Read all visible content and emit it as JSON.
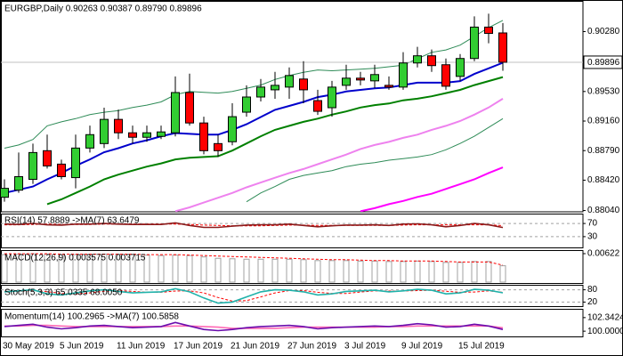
{
  "chart_data": [
    {
      "type": "candlestick",
      "title": "EURGBP,Daily  0.90263 0.90387 0.89790 0.89896",
      "categories": [
        "30 May 2019",
        null,
        null,
        null,
        "5 Jun 2019",
        null,
        null,
        null,
        "11 Jun 2019",
        null,
        null,
        null,
        "17 Jun 2019",
        null,
        null,
        null,
        "21 Jun 2019",
        null,
        null,
        null,
        "27 Jun 2019",
        null,
        null,
        null,
        "3 Jul 2019",
        null,
        null,
        null,
        "9 Jul 2019",
        null,
        null,
        null,
        "15 Jul 2019",
        null,
        null,
        null
      ],
      "open": [
        0.88206,
        0.88295,
        0.8843,
        0.88789,
        0.88621,
        0.88452,
        0.88822,
        0.88878,
        0.89181,
        0.89013,
        0.88957,
        0.88968,
        0.89013,
        0.89517,
        0.89136,
        0.88878,
        0.88901,
        0.89271,
        0.89461,
        0.89551,
        0.89585,
        0.89686,
        0.89416,
        0.89327,
        0.89607,
        0.89697,
        0.89663,
        0.89607,
        0.89585,
        0.89887,
        0.89977,
        0.89865,
        0.89719,
        0.89943,
        0.90336,
        0.90263
      ],
      "high": [
        0.8843,
        0.88766,
        0.88878,
        0.8899,
        0.88677,
        0.8899,
        0.89103,
        0.89327,
        0.89304,
        0.89103,
        0.89103,
        0.89103,
        0.89719,
        0.89753,
        0.89215,
        0.8899,
        0.89383,
        0.89607,
        0.89686,
        0.89775,
        0.89831,
        0.8991,
        0.89551,
        0.89663,
        0.89865,
        0.89775,
        0.89865,
        0.89719,
        0.90022,
        0.90089,
        0.90055,
        0.89943,
        0.89999,
        0.9047,
        0.90504,
        0.90387
      ],
      "low": [
        0.8815,
        0.88262,
        0.88374,
        0.88565,
        0.8843,
        0.88318,
        0.88766,
        0.88822,
        0.88934,
        0.88878,
        0.88901,
        0.88934,
        0.88968,
        0.89103,
        0.88744,
        0.8871,
        0.88856,
        0.89215,
        0.89405,
        0.89439,
        0.89439,
        0.89383,
        0.89237,
        0.89215,
        0.89551,
        0.89607,
        0.89573,
        0.89551,
        0.89551,
        0.89831,
        0.89775,
        0.89551,
        0.89663,
        0.8991,
        0.90134,
        0.8979
      ],
      "close": [
        0.88318,
        0.88464,
        0.88766,
        0.88598,
        0.88464,
        0.88822,
        0.8899,
        0.89181,
        0.89013,
        0.88957,
        0.89013,
        0.89024,
        0.89517,
        0.89136,
        0.88789,
        0.88789,
        0.89215,
        0.89461,
        0.89585,
        0.89607,
        0.8973,
        0.89551,
        0.89282,
        0.89585,
        0.89697,
        0.89674,
        0.89742,
        0.89585,
        0.89887,
        0.89977,
        0.89854,
        0.89596,
        0.89943,
        0.90336,
        0.90257,
        0.89896
      ],
      "up_color": "#32cd32",
      "down_color": "#ff0000",
      "lines": [
        {
          "color": "#2e8b57",
          "width": 1,
          "values": [
            0.8882,
            0.8886,
            0.8893,
            0.891,
            0.8915,
            0.8919,
            0.8924,
            0.8927,
            0.8929,
            0.8933,
            0.8936,
            0.894,
            0.8949,
            0.8953,
            0.8952,
            0.8951,
            0.8953,
            0.8957,
            0.8961,
            0.8968,
            0.8973,
            0.8977,
            0.898,
            0.8979,
            0.898,
            0.8981,
            0.8982,
            0.8984,
            0.8986,
            0.8994,
            0.9002,
            0.9005,
            0.9011,
            0.9022,
            0.9033,
            0.9042
          ]
        },
        {
          "color": "#2e8b57",
          "width": 1,
          "values": [
            null,
            null,
            null,
            null,
            null,
            null,
            null,
            null,
            null,
            null,
            null,
            null,
            null,
            null,
            null,
            null,
            null,
            0.8815,
            0.8826,
            0.8834,
            0.8843,
            0.8848,
            0.8851,
            0.8854,
            0.8859,
            0.8862,
            0.8864,
            0.8867,
            0.8869,
            0.8871,
            0.8874,
            0.888,
            0.8888,
            0.8897,
            0.8908,
            0.8919
          ]
        },
        {
          "color": "#ff00ff",
          "width": 2,
          "values": [
            null,
            null,
            null,
            null,
            null,
            null,
            null,
            null,
            null,
            null,
            null,
            null,
            null,
            null,
            null,
            null,
            null,
            null,
            null,
            null,
            null,
            null,
            null,
            null,
            null,
            0.8803,
            0.8807,
            0.8812,
            0.8816,
            0.8821,
            0.8825,
            0.8831,
            0.8837,
            0.8843,
            0.8851,
            0.8858
          ]
        },
        {
          "color": "#ee82ee",
          "width": 2,
          "values": [
            null,
            null,
            null,
            null,
            null,
            null,
            null,
            null,
            null,
            null,
            null,
            null,
            0.8803,
            0.8808,
            0.8814,
            0.882,
            0.8826,
            0.8833,
            0.8839,
            0.8845,
            0.8851,
            0.8856,
            0.8862,
            0.8868,
            0.8874,
            0.8881,
            0.8886,
            0.889,
            0.8895,
            0.8899,
            0.8905,
            0.891,
            0.8916,
            0.8924,
            0.8933,
            0.8944
          ]
        },
        {
          "color": "#008000",
          "width": 2,
          "values": [
            null,
            null,
            null,
            0.8812,
            0.8818,
            0.8826,
            0.8834,
            0.8843,
            0.8849,
            0.8854,
            0.8859,
            0.8863,
            0.8868,
            0.887,
            0.8871,
            0.8872,
            0.8879,
            0.8888,
            0.8897,
            0.8905,
            0.891,
            0.8915,
            0.8919,
            0.8924,
            0.8928,
            0.8933,
            0.8936,
            0.8938,
            0.8942,
            0.8944,
            0.8947,
            0.8951,
            0.8955,
            0.8961,
            0.8966,
            0.8971
          ]
        },
        {
          "color": "#0000cc",
          "width": 2,
          "values": [
            0.8826,
            0.883,
            0.8834,
            0.8843,
            0.8851,
            0.886,
            0.8868,
            0.8877,
            0.8882,
            0.8888,
            0.8892,
            0.8897,
            0.8901,
            0.89,
            0.8899,
            0.8899,
            0.8905,
            0.8912,
            0.8921,
            0.893,
            0.8935,
            0.894,
            0.8946,
            0.8949,
            0.8953,
            0.8955,
            0.8957,
            0.8958,
            0.8961,
            0.8964,
            0.8964,
            0.8964,
            0.8966,
            0.8975,
            0.8982,
            0.8989
          ]
        }
      ],
      "last_price": 0.89896,
      "ylim": [
        0.88035,
        0.90653
      ],
      "yticks": [
        {
          "value": 0.9028,
          "label": "0.90280"
        },
        {
          "value": 0.8953,
          "label": "0.89530"
        },
        {
          "value": 0.8916,
          "label": "0.89160"
        },
        {
          "value": 0.8879,
          "label": "0.88790"
        },
        {
          "value": 0.8842,
          "label": "0.88420"
        },
        {
          "value": 0.8804,
          "label": "0.88040"
        }
      ],
      "grid": false
    },
    {
      "type": "line",
      "title": "RSI(14) 57.8889  ->MA(7) 63.6479",
      "series": [
        {
          "color": "#ff0000",
          "style": "dashed",
          "values": [
            66,
            66,
            67,
            68,
            67,
            67,
            67,
            68,
            68,
            68,
            68,
            68,
            68,
            67,
            65,
            64,
            63,
            63,
            63,
            64,
            65,
            65,
            64,
            64,
            64,
            64,
            64,
            64,
            65,
            66,
            66,
            66,
            66,
            66,
            66,
            63.6479
          ]
        },
        {
          "color": "#8b1a1a",
          "style": "solid",
          "values": [
            68,
            67,
            70,
            66,
            65,
            68,
            68,
            70,
            68,
            67,
            67,
            67,
            72,
            64,
            58,
            58,
            62,
            65,
            66,
            66,
            68,
            64,
            60,
            63,
            65,
            65,
            66,
            64,
            68,
            69,
            66,
            60,
            64,
            70,
            66,
            57.8889
          ]
        }
      ],
      "ylim": [
        0,
        100
      ],
      "yticks": [
        70,
        30
      ],
      "grid": true
    },
    {
      "type": "bar",
      "title": "MACD(12,26,9) 0.003575 0.003715",
      "series": [
        {
          "color": "#a0a0a0",
          "style": "bar",
          "values": [
            0.006,
            0.0061,
            0.0062,
            0.0061,
            0.006,
            0.006,
            0.006,
            0.0061,
            0.0061,
            0.006,
            0.0059,
            0.0058,
            0.0059,
            0.0058,
            0.0055,
            0.0052,
            0.0051,
            0.005,
            0.005,
            0.005,
            0.005,
            0.0049,
            0.0047,
            0.0047,
            0.0047,
            0.0046,
            0.0046,
            0.0045,
            0.0045,
            0.0046,
            0.0045,
            0.0043,
            0.0043,
            0.0045,
            0.0045,
            0.003575
          ]
        },
        {
          "color": "#ff0000",
          "style": "dashed",
          "values": [
            0.0062,
            0.0062,
            0.0062,
            0.0062,
            0.0061,
            0.0061,
            0.0061,
            0.0061,
            0.0061,
            0.0061,
            0.006,
            0.006,
            0.006,
            0.0059,
            0.0058,
            0.0057,
            0.0056,
            0.0055,
            0.0054,
            0.0053,
            0.0052,
            0.0051,
            0.005,
            0.0049,
            0.0049,
            0.0048,
            0.0047,
            0.0047,
            0.0046,
            0.0046,
            0.0046,
            0.0045,
            0.0044,
            0.0044,
            0.0044,
            0.003715
          ]
        }
      ],
      "ylim": [
        0,
        0.0068
      ],
      "yticks": [
        0.00622
      ],
      "grid": false
    },
    {
      "type": "line",
      "title": "Stoch(5,3,3) 65.0335 68.0050",
      "series": [
        {
          "color": "#ff0000",
          "style": "dashed",
          "values": [
            72,
            73,
            76,
            71,
            62,
            60,
            65,
            73,
            76,
            72,
            68,
            68,
            74,
            75,
            65,
            42,
            25,
            27,
            45,
            65,
            76,
            76,
            68,
            62,
            62,
            69,
            75,
            74,
            74,
            76,
            78,
            73,
            68,
            69,
            75,
            68.005
          ]
        },
        {
          "color": "#20b2aa",
          "style": "solid",
          "values": [
            70,
            75,
            80,
            60,
            55,
            65,
            75,
            80,
            72,
            65,
            68,
            70,
            85,
            70,
            40,
            15,
            20,
            45,
            70,
            80,
            78,
            70,
            55,
            60,
            72,
            75,
            78,
            70,
            75,
            82,
            78,
            60,
            65,
            82,
            78,
            65.0335
          ]
        }
      ],
      "ylim": [
        0,
        100
      ],
      "yticks": [
        80,
        20
      ],
      "grid": true
    },
    {
      "type": "line",
      "title": "Momentum(14) 100.2965  ->MA(7) 100.5858",
      "series": [
        {
          "color": "#ff69b4",
          "style": "solid",
          "values": [
            100.9,
            100.9,
            101.0,
            101.0,
            100.9,
            100.8,
            100.8,
            100.8,
            100.8,
            100.8,
            100.8,
            100.8,
            100.9,
            100.9,
            100.8,
            100.7,
            100.5,
            100.5,
            100.5,
            100.5,
            100.6,
            100.7,
            100.7,
            100.7,
            100.7,
            100.7,
            100.7,
            100.8,
            100.8,
            100.9,
            100.9,
            100.9,
            100.9,
            100.9,
            100.9,
            100.5858
          ]
        },
        {
          "color": "#6a0dad",
          "style": "solid",
          "values": [
            100.8,
            101.0,
            101.2,
            100.7,
            100.4,
            100.6,
            100.9,
            101.0,
            100.8,
            100.6,
            100.7,
            100.8,
            101.5,
            100.9,
            100.3,
            100.1,
            100.3,
            100.6,
            100.8,
            100.9,
            101.0,
            100.8,
            100.4,
            100.6,
            100.7,
            100.8,
            100.9,
            100.8,
            101.0,
            101.3,
            101.1,
            100.7,
            100.8,
            101.2,
            100.9,
            100.2965
          ]
        }
      ],
      "ylim": [
        99.1,
        103.7
      ],
      "yticks": [
        102.3424,
        {
          "value": 100,
          "label": "100.0000"
        }
      ],
      "grid": false
    }
  ]
}
